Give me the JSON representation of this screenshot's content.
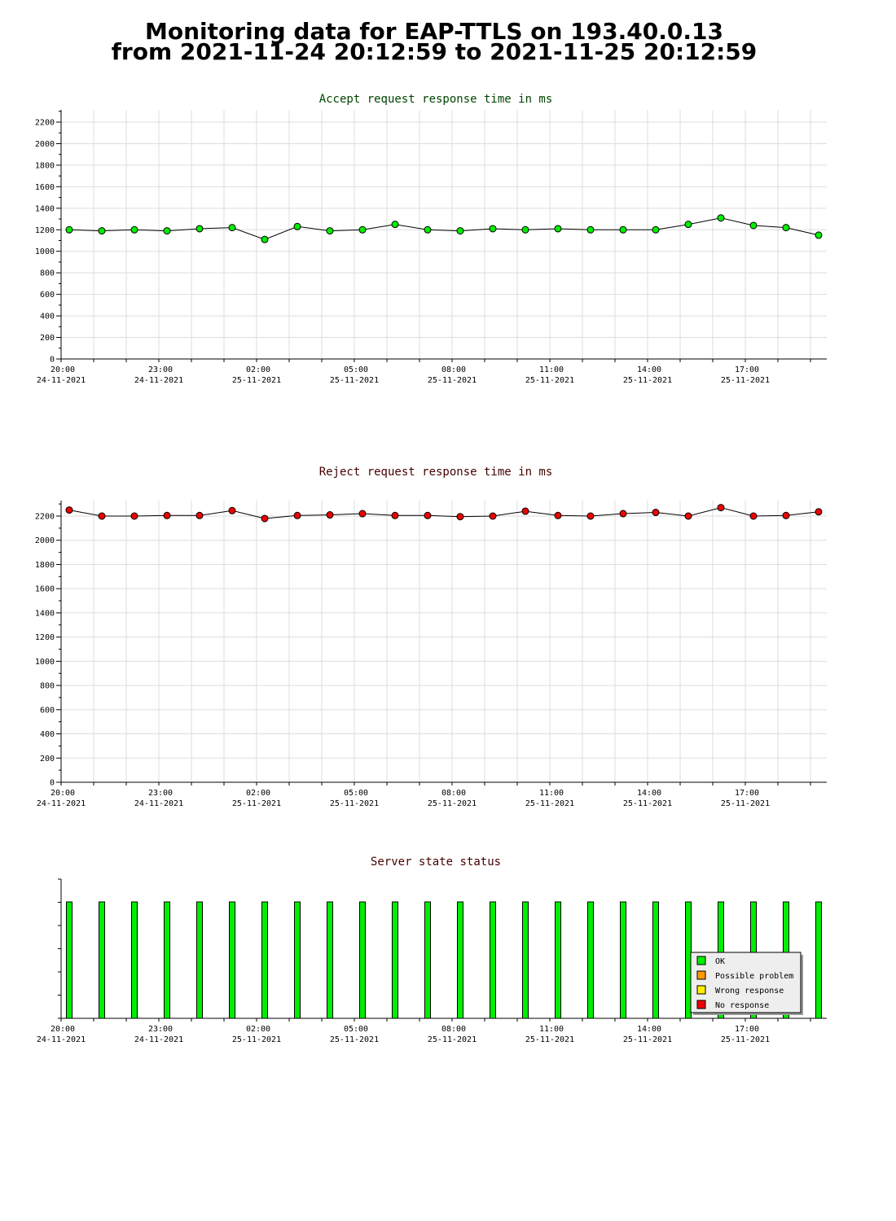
{
  "page": {
    "title_line1": "Monitoring data for EAP-TTLS on 193.40.0.13",
    "title_line2": "from 2021-11-24 20:12:59 to 2021-11-25 20:12:59"
  },
  "colors": {
    "accept_title": "#004400",
    "other_title": "#440000",
    "ok": "#00ee00",
    "reject_marker": "#ee0000",
    "possible_problem": "#ff9900",
    "wrong_response": "#ffee00",
    "no_response": "#ee0000",
    "grid": "#dddddd"
  },
  "chart_data": [
    {
      "id": "accept",
      "type": "line",
      "title": "Accept request response time in ms",
      "ylim": [
        0,
        2300
      ],
      "y_ticks": [
        0,
        200,
        400,
        600,
        800,
        1000,
        1200,
        1400,
        1600,
        1800,
        2000,
        2200
      ],
      "x_tick_labels": [
        {
          "hour": "20:00",
          "date": "24-11-2021"
        },
        {
          "hour": "23:00",
          "date": "24-11-2021"
        },
        {
          "hour": "02:00",
          "date": "25-11-2021"
        },
        {
          "hour": "05:00",
          "date": "25-11-2021"
        },
        {
          "hour": "08:00",
          "date": "25-11-2021"
        },
        {
          "hour": "11:00",
          "date": "25-11-2021"
        },
        {
          "hour": "14:00",
          "date": "25-11-2021"
        },
        {
          "hour": "17:00",
          "date": "25-11-2021"
        }
      ],
      "grid": true,
      "marker_color": "#00ee00",
      "values": [
        1200,
        1190,
        1200,
        1190,
        1210,
        1220,
        1110,
        1230,
        1190,
        1200,
        1250,
        1200,
        1190,
        1210,
        1200,
        1210,
        1200,
        1200,
        1200,
        1250,
        1310,
        1240,
        1220,
        1150
      ]
    },
    {
      "id": "reject",
      "type": "line",
      "title": "Reject request response time in ms",
      "ylim": [
        0,
        2330
      ],
      "y_ticks": [
        0,
        200,
        400,
        600,
        800,
        1000,
        1200,
        1400,
        1600,
        1800,
        2000,
        2200
      ],
      "x_tick_labels": [
        {
          "hour": "20:00",
          "date": "24-11-2021"
        },
        {
          "hour": "23:00",
          "date": "24-11-2021"
        },
        {
          "hour": "02:00",
          "date": "25-11-2021"
        },
        {
          "hour": "05:00",
          "date": "25-11-2021"
        },
        {
          "hour": "08:00",
          "date": "25-11-2021"
        },
        {
          "hour": "11:00",
          "date": "25-11-2021"
        },
        {
          "hour": "14:00",
          "date": "25-11-2021"
        },
        {
          "hour": "17:00",
          "date": "25-11-2021"
        }
      ],
      "grid": true,
      "marker_color": "#ee0000",
      "values": [
        2250,
        2200,
        2200,
        2205,
        2205,
        2245,
        2180,
        2205,
        2210,
        2220,
        2205,
        2205,
        2195,
        2200,
        2240,
        2205,
        2200,
        2220,
        2230,
        2200,
        2270,
        2200,
        2205,
        2235
      ]
    },
    {
      "id": "status",
      "type": "bar",
      "title": "Server state status",
      "x_tick_labels": [
        {
          "hour": "20:00",
          "date": "24-11-2021"
        },
        {
          "hour": "23:00",
          "date": "24-11-2021"
        },
        {
          "hour": "02:00",
          "date": "25-11-2021"
        },
        {
          "hour": "05:00",
          "date": "25-11-2021"
        },
        {
          "hour": "08:00",
          "date": "25-11-2021"
        },
        {
          "hour": "11:00",
          "date": "25-11-2021"
        },
        {
          "hour": "14:00",
          "date": "25-11-2021"
        },
        {
          "hour": "17:00",
          "date": "25-11-2021"
        }
      ],
      "grid": false,
      "states": [
        "OK",
        "OK",
        "OK",
        "OK",
        "OK",
        "OK",
        "OK",
        "OK",
        "OK",
        "OK",
        "OK",
        "OK",
        "OK",
        "OK",
        "OK",
        "OK",
        "OK",
        "OK",
        "OK",
        "OK",
        "OK",
        "OK",
        "OK",
        "OK"
      ],
      "legend_position": "bottom-right",
      "legend": [
        {
          "label": "OK",
          "color": "#00ee00"
        },
        {
          "label": "Possible problem",
          "color": "#ff9900"
        },
        {
          "label": "Wrong response",
          "color": "#ffee00"
        },
        {
          "label": "No response",
          "color": "#ee0000"
        }
      ]
    }
  ]
}
